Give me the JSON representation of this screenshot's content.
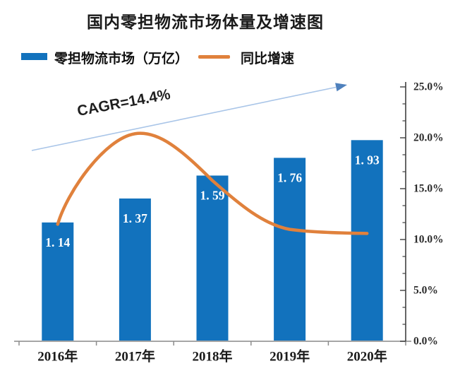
{
  "title": "国内零担物流市场体量及增速图",
  "legend": {
    "items": [
      {
        "label": "零担物流市场（万亿）",
        "type": "bar",
        "color": "#1272bd"
      },
      {
        "label": "同比增速",
        "type": "line",
        "color": "#e0813c"
      }
    ],
    "position": "top-left"
  },
  "annotation": {
    "text": "CAGR=14.4%",
    "arrow_line_color": "#a9c5e8",
    "arrow_head_color": "#4f81bd"
  },
  "chart_data": {
    "type": "bar+line combo",
    "title": "国内零担物流市场体量及增速图",
    "categories": [
      "2016年",
      "2017年",
      "2018年",
      "2019年",
      "2020年"
    ],
    "series": [
      {
        "name": "零担物流市场（万亿）",
        "type": "bar",
        "values": [
          1.14,
          1.37,
          1.59,
          1.76,
          1.93
        ],
        "value_labels": [
          "1. 14",
          "1. 37",
          "1. 59",
          "1. 76",
          "1. 93"
        ],
        "color": "#1272bd",
        "label_color": "#ffffff",
        "axis": "left-hidden"
      },
      {
        "name": "同比增速",
        "type": "line",
        "values_pct": [
          11.5,
          20.4,
          15.8,
          11.0,
          10.6
        ],
        "color": "#e0813c",
        "axis": "right",
        "note": "values estimated from curve position; smooth spline, no markers"
      }
    ],
    "right_axis": {
      "tick_labels": [
        "0.0%",
        "5.0%",
        "10.0%",
        "15.0%",
        "20.0%",
        "25.0%"
      ],
      "min": 0,
      "max": 25,
      "major_step": 5,
      "minor_ticks_between_majors": 2,
      "color": "#3f3f3f",
      "label_color": "#2b2b2b"
    },
    "x_axis": {
      "color": "#a6a6a6",
      "tick_color": "#8c8c8c",
      "label_color": "#1a1a1a"
    },
    "grid": false,
    "legend_position": "top-left",
    "background": "#ffffff"
  }
}
